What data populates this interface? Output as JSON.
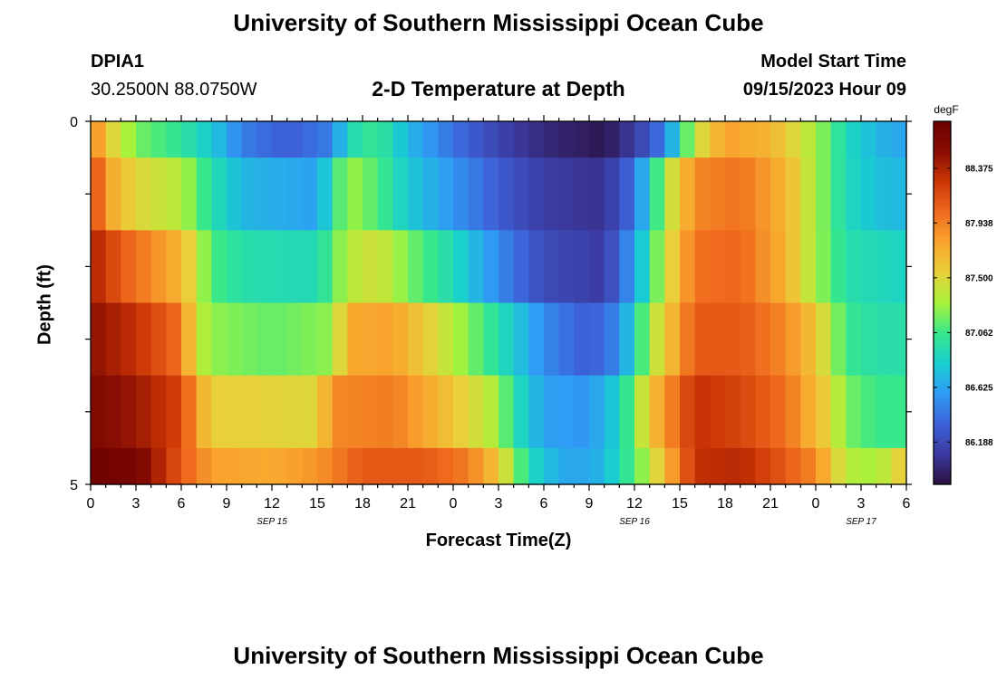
{
  "header": {
    "title": "University of Southern Mississippi Ocean Cube",
    "station_id": "DPIA1",
    "coords": "30.2500N  88.0750W",
    "plot_title": "2-D Temperature at Depth",
    "model_start_label": "Model Start Time",
    "model_start_value": "09/15/2023 Hour 09"
  },
  "footer": {
    "title": "University of Southern Mississippi Ocean Cube"
  },
  "colorbar": {
    "unit": "degF",
    "ticks": [
      "88.375",
      "87.938",
      "87.500",
      "87.062",
      "86.625",
      "86.188"
    ],
    "colors": [
      "#2b0f3f",
      "#3b3aa0",
      "#3d62d8",
      "#2f9cf5",
      "#18cfd0",
      "#38e88a",
      "#a8f33a",
      "#e9d03a",
      "#f9a52d",
      "#ef6a1d",
      "#cc3606",
      "#8a0e02",
      "#6b0000"
    ]
  },
  "chart_data": {
    "type": "heatmap",
    "xlabel": "Forecast Time(Z)",
    "ylabel": "Depth (ft)",
    "x_tick_labels": [
      "0",
      "3",
      "6",
      "9",
      "12",
      "15",
      "18",
      "21",
      "0",
      "3",
      "6",
      "9",
      "12",
      "15",
      "18",
      "21",
      "0",
      "3",
      "6"
    ],
    "date_labels": [
      {
        "text": "SEP 15",
        "at_hour": 12
      },
      {
        "text": "SEP 16",
        "at_hour": 36
      },
      {
        "text": "SEP 17",
        "at_hour": 51
      }
    ],
    "x_range_hours": [
      0,
      54
    ],
    "y_tick_labels": [
      {
        "text": "0",
        "depth": 0
      },
      {
        "text": "5",
        "depth": 5
      }
    ],
    "y_range": [
      0,
      5
    ],
    "value_range_degF": [
      85.85,
      88.75
    ],
    "depth_rows": [
      {
        "depth_range": [
          0,
          0.5
        ],
        "knots": [
          [
            0,
            88.0
          ],
          [
            1,
            87.6
          ],
          [
            3,
            87.2
          ],
          [
            6,
            87.0
          ],
          [
            8,
            86.8
          ],
          [
            10,
            86.45
          ],
          [
            13,
            86.3
          ],
          [
            16,
            86.45
          ],
          [
            17,
            86.9
          ],
          [
            19,
            87.05
          ],
          [
            21,
            86.7
          ],
          [
            24,
            86.4
          ],
          [
            27,
            86.15
          ],
          [
            30,
            86.0
          ],
          [
            34,
            85.9
          ],
          [
            36,
            86.1
          ],
          [
            38,
            86.45
          ],
          [
            40,
            87.4
          ],
          [
            42,
            87.8
          ],
          [
            45,
            87.7
          ],
          [
            48,
            87.3
          ],
          [
            50,
            86.9
          ],
          [
            52,
            86.7
          ],
          [
            54,
            86.6
          ]
        ]
      },
      {
        "depth_range": [
          0.5,
          1.5
        ],
        "knots": [
          [
            0,
            88.3
          ],
          [
            1,
            87.8
          ],
          [
            3,
            87.5
          ],
          [
            6,
            87.35
          ],
          [
            8,
            86.95
          ],
          [
            10,
            86.7
          ],
          [
            15,
            86.6
          ],
          [
            17,
            87.3
          ],
          [
            19,
            87.1
          ],
          [
            21,
            86.8
          ],
          [
            24,
            86.55
          ],
          [
            27,
            86.3
          ],
          [
            30,
            86.1
          ],
          [
            34,
            86.05
          ],
          [
            36,
            86.4
          ],
          [
            38,
            87.3
          ],
          [
            40,
            87.9
          ],
          [
            43,
            88.0
          ],
          [
            46,
            87.7
          ],
          [
            48,
            87.3
          ],
          [
            50,
            86.9
          ],
          [
            52,
            86.75
          ],
          [
            54,
            86.7
          ]
        ]
      },
      {
        "depth_range": [
          1.5,
          2.5
        ],
        "knots": [
          [
            0,
            88.4
          ],
          [
            2,
            88.1
          ],
          [
            4,
            87.9
          ],
          [
            6,
            87.7
          ],
          [
            8,
            87.1
          ],
          [
            10,
            86.95
          ],
          [
            15,
            86.9
          ],
          [
            17,
            87.35
          ],
          [
            19,
            87.45
          ],
          [
            21,
            87.2
          ],
          [
            24,
            86.9
          ],
          [
            27,
            86.5
          ],
          [
            30,
            86.2
          ],
          [
            34,
            86.1
          ],
          [
            36,
            86.6
          ],
          [
            38,
            87.4
          ],
          [
            40,
            88.0
          ],
          [
            43,
            88.05
          ],
          [
            46,
            87.7
          ],
          [
            48,
            87.3
          ],
          [
            50,
            86.95
          ],
          [
            52,
            86.9
          ],
          [
            54,
            86.85
          ]
        ]
      },
      {
        "depth_range": [
          2.5,
          3.5
        ],
        "knots": [
          [
            0,
            88.5
          ],
          [
            3,
            88.3
          ],
          [
            6,
            88.0
          ],
          [
            7,
            87.4
          ],
          [
            8,
            87.25
          ],
          [
            12,
            87.15
          ],
          [
            16,
            87.25
          ],
          [
            17,
            87.75
          ],
          [
            20,
            87.8
          ],
          [
            24,
            87.35
          ],
          [
            27,
            86.95
          ],
          [
            30,
            86.5
          ],
          [
            33,
            86.3
          ],
          [
            35,
            86.5
          ],
          [
            37,
            87.3
          ],
          [
            40,
            88.1
          ],
          [
            43,
            88.1
          ],
          [
            46,
            87.9
          ],
          [
            48,
            87.6
          ],
          [
            50,
            87.05
          ],
          [
            52,
            86.95
          ],
          [
            54,
            86.95
          ]
        ]
      },
      {
        "depth_range": [
          3.5,
          4.5
        ],
        "knots": [
          [
            0,
            88.6
          ],
          [
            3,
            88.45
          ],
          [
            6,
            88.2
          ],
          [
            7,
            87.8
          ],
          [
            8,
            87.55
          ],
          [
            15,
            87.5
          ],
          [
            16,
            87.9
          ],
          [
            20,
            87.95
          ],
          [
            24,
            87.6
          ],
          [
            27,
            87.3
          ],
          [
            28,
            86.95
          ],
          [
            30,
            86.6
          ],
          [
            33,
            86.55
          ],
          [
            35,
            86.85
          ],
          [
            37,
            87.6
          ],
          [
            40,
            88.3
          ],
          [
            43,
            88.2
          ],
          [
            46,
            88.0
          ],
          [
            49,
            87.5
          ],
          [
            50,
            87.2
          ],
          [
            52,
            87.05
          ],
          [
            54,
            87.05
          ]
        ]
      },
      {
        "depth_range": [
          4.5,
          5
        ],
        "knots": [
          [
            0,
            88.7
          ],
          [
            3,
            88.65
          ],
          [
            6,
            88.1
          ],
          [
            8,
            87.8
          ],
          [
            12,
            87.75
          ],
          [
            15,
            87.85
          ],
          [
            18,
            88.1
          ],
          [
            22,
            88.1
          ],
          [
            25,
            87.95
          ],
          [
            27,
            87.6
          ],
          [
            28,
            87.25
          ],
          [
            29,
            86.95
          ],
          [
            30,
            86.75
          ],
          [
            32,
            86.6
          ],
          [
            34,
            86.7
          ],
          [
            37,
            87.35
          ],
          [
            40,
            88.3
          ],
          [
            43,
            88.35
          ],
          [
            46,
            88.1
          ],
          [
            48,
            87.9
          ],
          [
            50,
            87.35
          ],
          [
            52,
            87.3
          ],
          [
            54,
            87.6
          ]
        ]
      }
    ]
  }
}
